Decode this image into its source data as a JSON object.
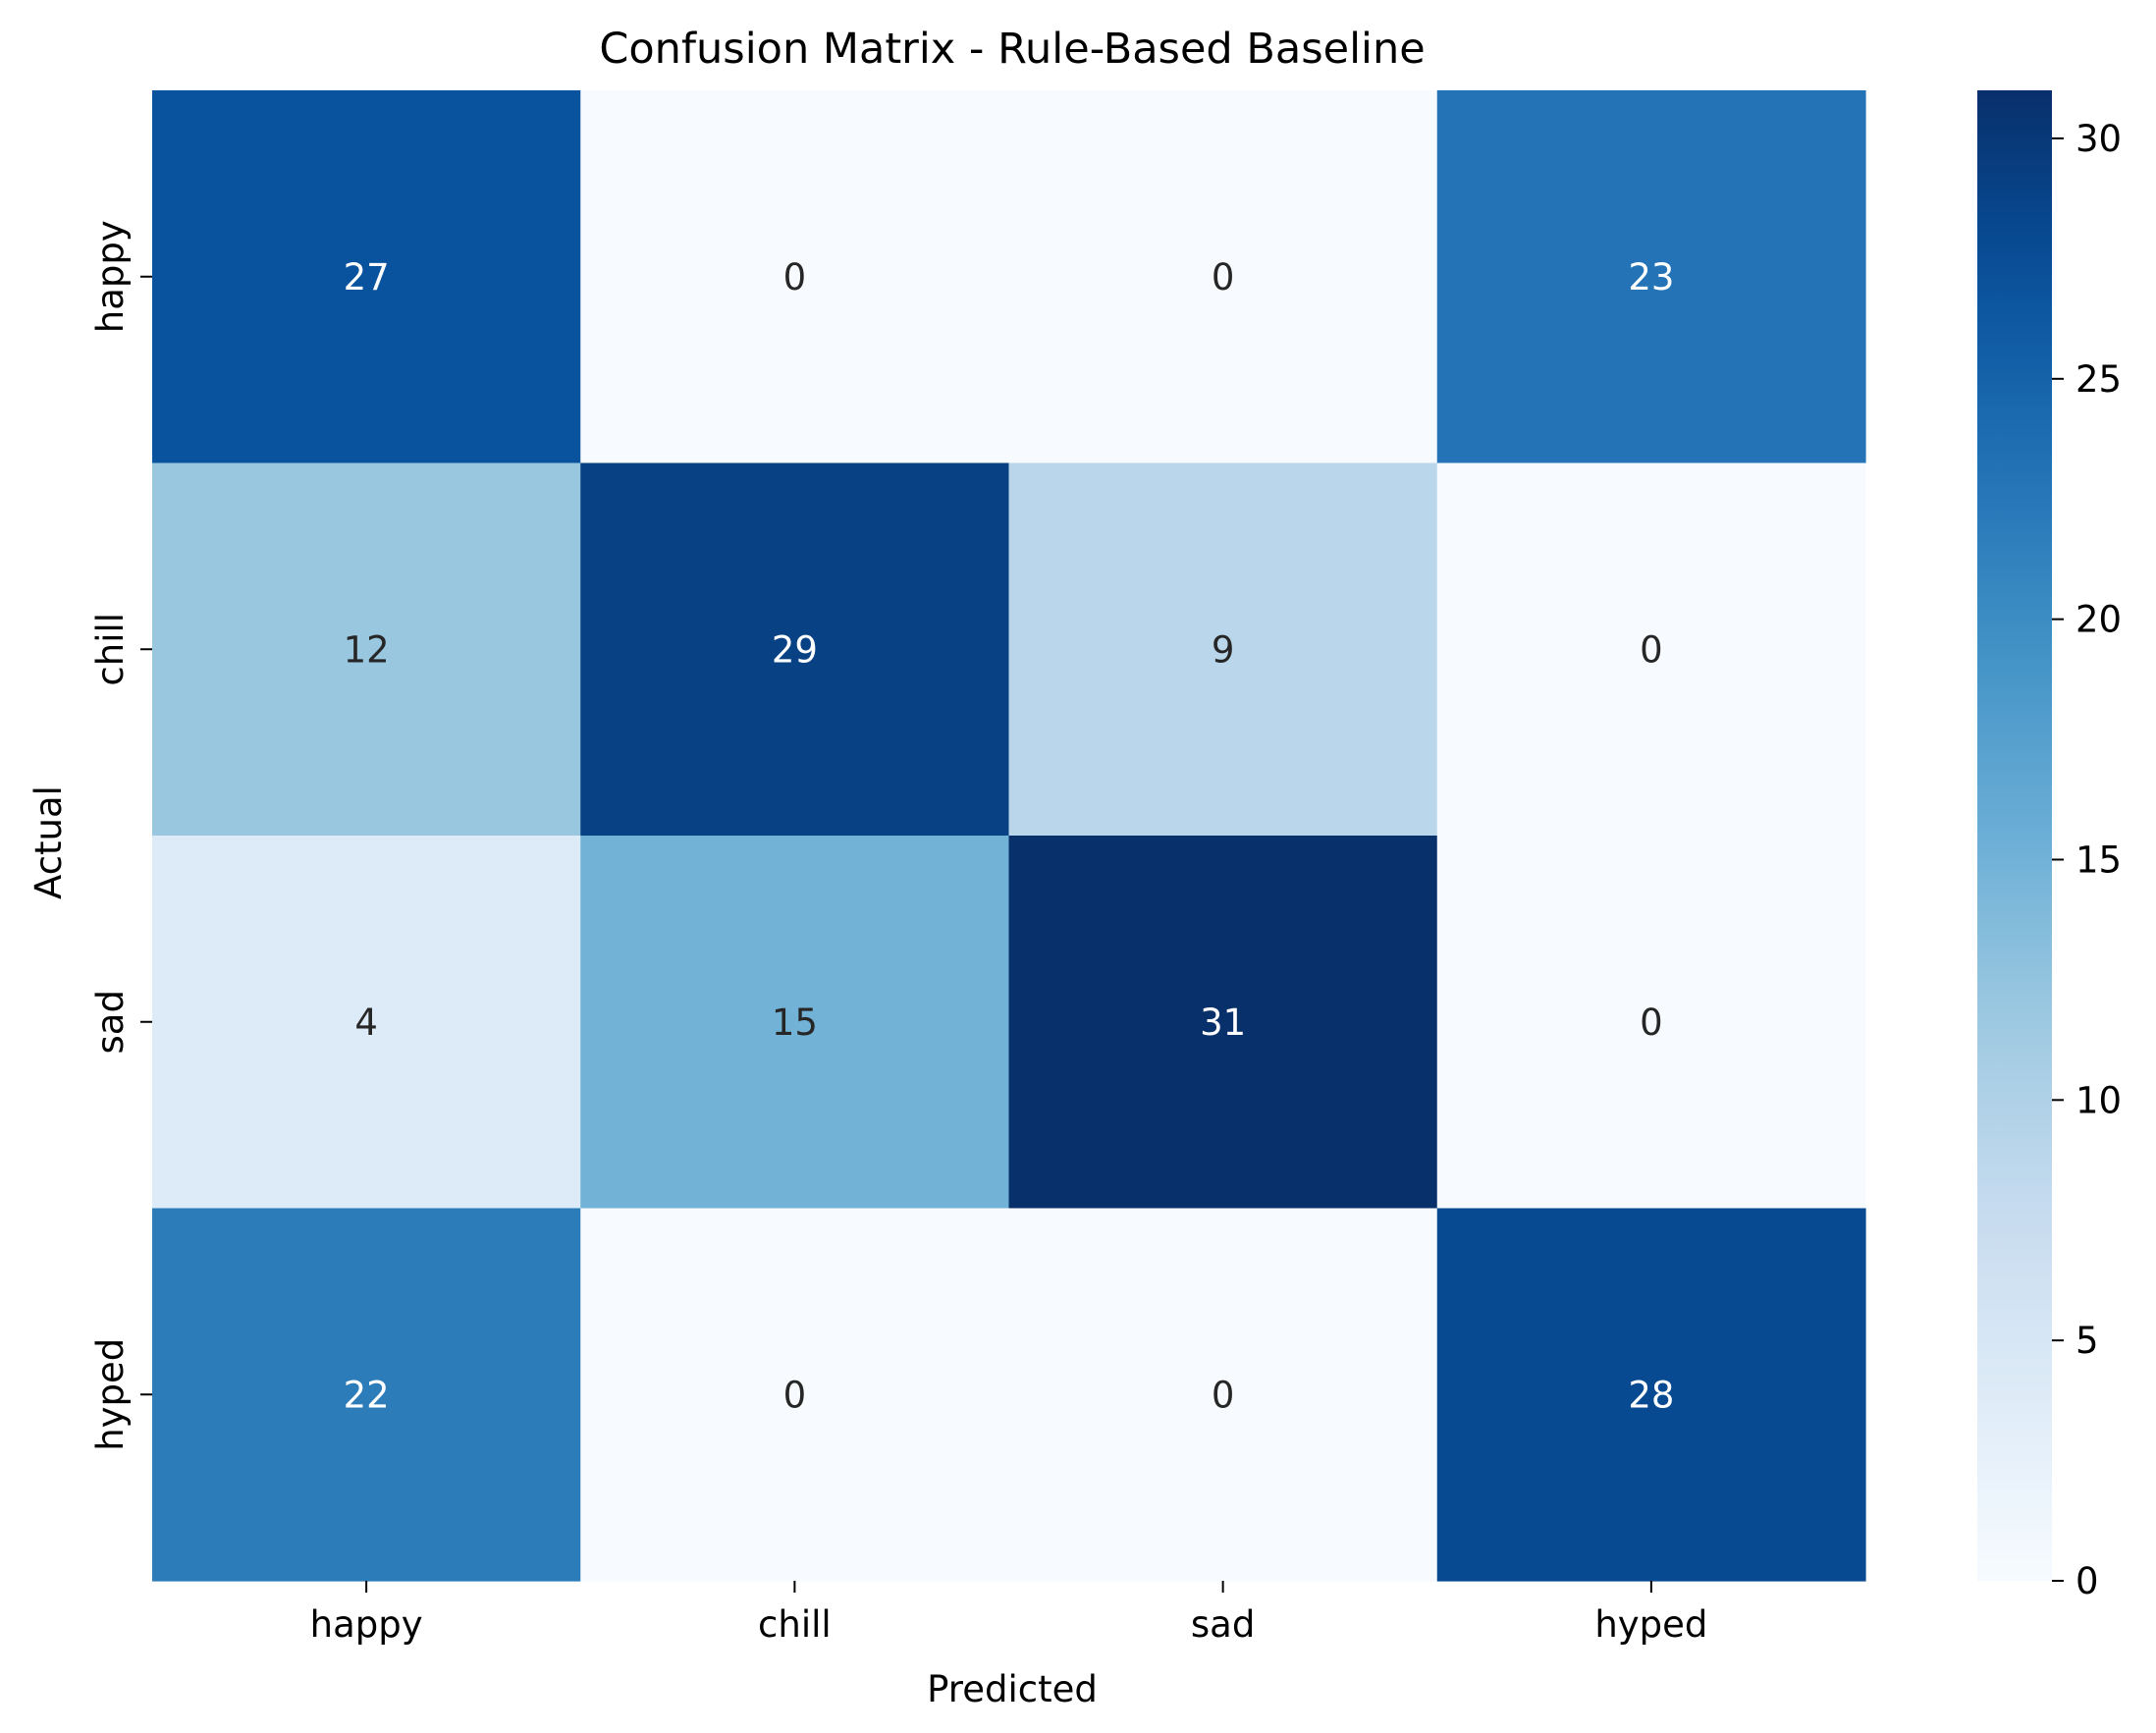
{
  "chart_data": {
    "type": "heatmap",
    "title": "Confusion Matrix - Rule-Based Baseline",
    "xlabel": "Predicted",
    "ylabel": "Actual",
    "x_categories": [
      "happy",
      "chill",
      "sad",
      "hyped"
    ],
    "y_categories": [
      "happy",
      "chill",
      "sad",
      "hyped"
    ],
    "values": [
      [
        27,
        0,
        0,
        23
      ],
      [
        12,
        29,
        9,
        0
      ],
      [
        4,
        15,
        31,
        0
      ],
      [
        22,
        0,
        0,
        28
      ]
    ],
    "colormap": "Blues",
    "color_range": [
      0,
      31
    ],
    "colorbar_ticks": [
      0,
      5,
      10,
      15,
      20,
      25,
      30
    ],
    "colorbar_tick_labels": [
      "0",
      "5",
      "10",
      "15",
      "20",
      "25",
      "30"
    ],
    "annotation_text_colors": {
      "light": "#ffffff",
      "dark": "#262626"
    }
  }
}
